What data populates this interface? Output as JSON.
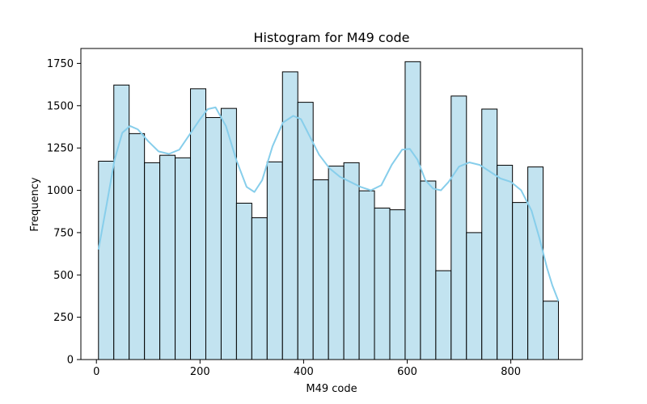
{
  "chart_data": {
    "type": "bar",
    "title": "Histogram for M49 code",
    "xlabel": "M49 code",
    "ylabel": "Frequency",
    "xlim": [
      -30,
      938
    ],
    "ylim": [
      0,
      1838
    ],
    "x_ticks": [
      0,
      200,
      400,
      600,
      800
    ],
    "y_ticks": [
      0,
      250,
      500,
      750,
      1000,
      1250,
      1500,
      1750
    ],
    "bin_start": 4,
    "bin_width": 29.6,
    "values": [
      1172,
      1622,
      1335,
      1163,
      1207,
      1192,
      1600,
      1430,
      1484,
      924,
      838,
      1168,
      1700,
      1520,
      1062,
      1143,
      1163,
      997,
      895,
      885,
      1760,
      1055,
      525,
      1557,
      750,
      1480,
      1148,
      928,
      1138,
      345
    ],
    "kde": {
      "x": [
        4,
        20,
        35,
        50,
        65,
        80,
        100,
        120,
        140,
        160,
        180,
        200,
        215,
        230,
        250,
        270,
        290,
        305,
        320,
        340,
        360,
        380,
        395,
        410,
        430,
        450,
        470,
        490,
        510,
        530,
        550,
        570,
        590,
        605,
        620,
        635,
        650,
        665,
        680,
        700,
        720,
        740,
        760,
        780,
        800,
        820,
        840,
        855,
        870,
        880,
        892
      ],
      "y": [
        650,
        920,
        1180,
        1340,
        1380,
        1360,
        1290,
        1230,
        1215,
        1240,
        1330,
        1420,
        1480,
        1490,
        1380,
        1180,
        1020,
        990,
        1060,
        1260,
        1400,
        1440,
        1420,
        1330,
        1210,
        1130,
        1080,
        1050,
        1020,
        1000,
        1030,
        1150,
        1240,
        1245,
        1180,
        1060,
        1010,
        1000,
        1050,
        1140,
        1165,
        1150,
        1110,
        1070,
        1050,
        1000,
        880,
        720,
        540,
        440,
        345
      ]
    },
    "bar_color": "#c2e3f0",
    "bar_edge_color": "#000000",
    "kde_color": "#87ceeb",
    "grid": false,
    "legend": false
  }
}
